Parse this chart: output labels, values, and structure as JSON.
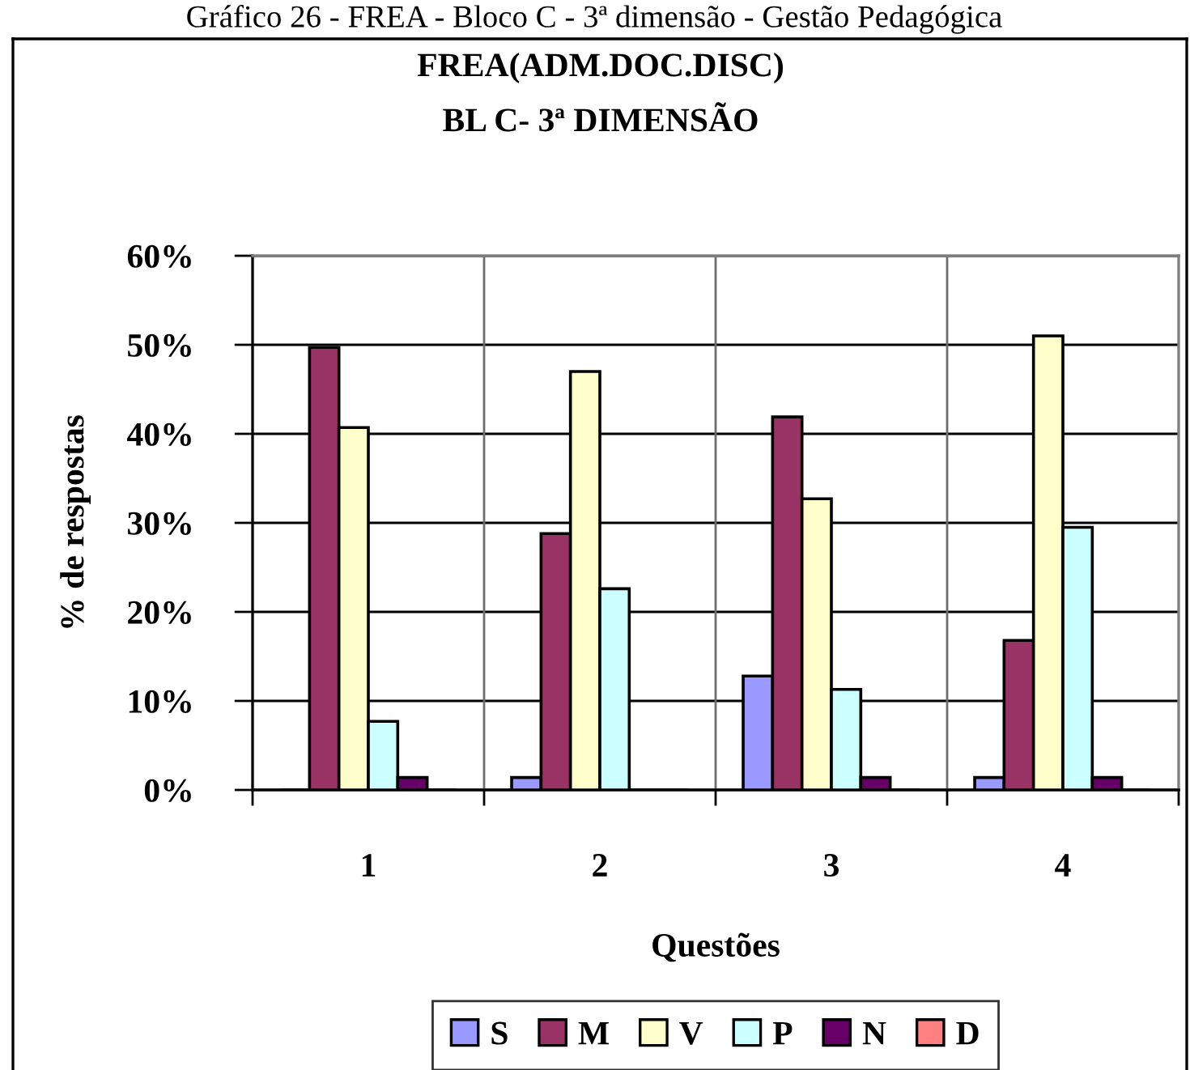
{
  "chart_data": {
    "type": "bar",
    "title": "FREA(ADM.DOC.DISC)",
    "subtitle": "BL C- 3ª DIMENSÃO",
    "xlabel": "Questões",
    "ylabel": "% de respostas",
    "annotations": [
      "Gráfico 26 - FREA - Bloco C - 3ª dimensão - Gestão Pedagógica"
    ],
    "categories": [
      "1",
      "2",
      "3",
      "4"
    ],
    "series": [
      {
        "name": "S",
        "color": "#9999ff",
        "values": [
          0,
          1.4,
          12.8,
          1.4
        ]
      },
      {
        "name": "M",
        "color": "#993366",
        "values": [
          49.7,
          28.8,
          41.9,
          16.8
        ]
      },
      {
        "name": "V",
        "color": "#ffffcc",
        "values": [
          40.7,
          47.0,
          32.7,
          51.0
        ]
      },
      {
        "name": "P",
        "color": "#ccffff",
        "values": [
          7.7,
          22.6,
          11.3,
          29.5
        ]
      },
      {
        "name": "N",
        "color": "#660066",
        "values": [
          1.4,
          0,
          1.4,
          1.4
        ]
      },
      {
        "name": "D",
        "color": "#ff8080",
        "values": [
          0,
          0,
          0,
          0
        ]
      }
    ],
    "ylim": [
      0,
      60
    ],
    "yticks": [
      {
        "value": 0,
        "label": "0%"
      },
      {
        "value": 10,
        "label": "10%"
      },
      {
        "value": 20,
        "label": "20%"
      },
      {
        "value": 30,
        "label": "30%"
      },
      {
        "value": 40,
        "label": "40%"
      },
      {
        "value": 50,
        "label": "50%"
      },
      {
        "value": 60,
        "label": "60%"
      }
    ],
    "grid": true,
    "legend": "bottom"
  }
}
